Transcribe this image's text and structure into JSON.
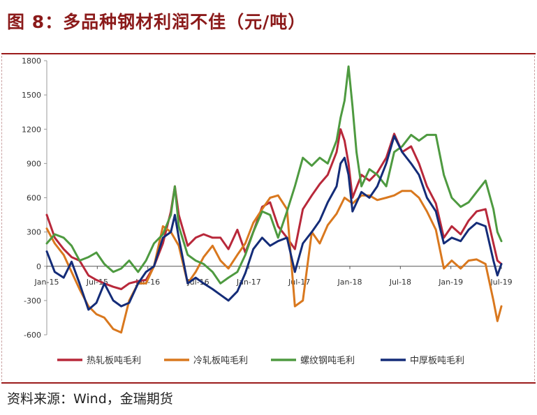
{
  "title": "图 8：多品种钢材利润不佳（元/吨）",
  "source": "资料来源：Wind，金瑞期货",
  "chart_data": {
    "type": "line",
    "title": "多品种钢材利润不佳（元/吨）",
    "ylim": [
      -600,
      1800
    ],
    "yticks": [
      "1800",
      "1500",
      "1200",
      "900",
      "600",
      "300",
      "0",
      "-300",
      "-600"
    ],
    "xticks": [
      "Jan-15",
      "Jul-15",
      "Jan-16",
      "Jul-16",
      "Jan-17",
      "Jul-17",
      "Jan-18",
      "Jul-18",
      "Jan-19",
      "Jul-19"
    ],
    "x_start": 2015.0,
    "x_end": 2019.58,
    "series": [
      {
        "name": "热轧板吨毛利",
        "color": "#b8283a",
        "points": [
          [
            2015.0,
            450
          ],
          [
            2015.08,
            250
          ],
          [
            2015.17,
            150
          ],
          [
            2015.25,
            80
          ],
          [
            2015.33,
            50
          ],
          [
            2015.42,
            -80
          ],
          [
            2015.5,
            -120
          ],
          [
            2015.58,
            -150
          ],
          [
            2015.67,
            -180
          ],
          [
            2015.75,
            -200
          ],
          [
            2015.83,
            -150
          ],
          [
            2015.92,
            -130
          ],
          [
            2016.0,
            -120
          ],
          [
            2016.08,
            0
          ],
          [
            2016.17,
            200
          ],
          [
            2016.25,
            480
          ],
          [
            2016.29,
            700
          ],
          [
            2016.33,
            450
          ],
          [
            2016.42,
            180
          ],
          [
            2016.5,
            250
          ],
          [
            2016.58,
            280
          ],
          [
            2016.67,
            250
          ],
          [
            2016.75,
            250
          ],
          [
            2016.83,
            150
          ],
          [
            2016.92,
            320
          ],
          [
            2017.0,
            120
          ],
          [
            2017.08,
            300
          ],
          [
            2017.17,
            520
          ],
          [
            2017.25,
            560
          ],
          [
            2017.33,
            350
          ],
          [
            2017.42,
            250
          ],
          [
            2017.5,
            150
          ],
          [
            2017.58,
            500
          ],
          [
            2017.67,
            620
          ],
          [
            2017.75,
            720
          ],
          [
            2017.83,
            800
          ],
          [
            2017.92,
            1000
          ],
          [
            2017.96,
            1200
          ],
          [
            2018.0,
            1100
          ],
          [
            2018.04,
            900
          ],
          [
            2018.08,
            600
          ],
          [
            2018.17,
            800
          ],
          [
            2018.25,
            750
          ],
          [
            2018.33,
            820
          ],
          [
            2018.42,
            950
          ],
          [
            2018.5,
            1160
          ],
          [
            2018.58,
            1000
          ],
          [
            2018.67,
            1050
          ],
          [
            2018.75,
            900
          ],
          [
            2018.83,
            700
          ],
          [
            2018.92,
            550
          ],
          [
            2019.0,
            250
          ],
          [
            2019.08,
            350
          ],
          [
            2019.17,
            280
          ],
          [
            2019.25,
            400
          ],
          [
            2019.33,
            480
          ],
          [
            2019.42,
            500
          ],
          [
            2019.5,
            200
          ],
          [
            2019.54,
            50
          ],
          [
            2019.58,
            20
          ]
        ]
      },
      {
        "name": "冷轧板吨毛利",
        "color": "#d9781e",
        "points": [
          [
            2015.0,
            330
          ],
          [
            2015.08,
            200
          ],
          [
            2015.17,
            100
          ],
          [
            2015.25,
            -50
          ],
          [
            2015.33,
            -200
          ],
          [
            2015.42,
            -350
          ],
          [
            2015.5,
            -420
          ],
          [
            2015.58,
            -450
          ],
          [
            2015.67,
            -550
          ],
          [
            2015.75,
            -580
          ],
          [
            2015.83,
            -300
          ],
          [
            2015.92,
            -150
          ],
          [
            2016.0,
            -150
          ],
          [
            2016.08,
            0
          ],
          [
            2016.17,
            350
          ],
          [
            2016.25,
            300
          ],
          [
            2016.33,
            180
          ],
          [
            2016.42,
            -150
          ],
          [
            2016.5,
            -50
          ],
          [
            2016.58,
            80
          ],
          [
            2016.67,
            180
          ],
          [
            2016.75,
            50
          ],
          [
            2016.83,
            -20
          ],
          [
            2016.92,
            100
          ],
          [
            2017.0,
            200
          ],
          [
            2017.08,
            380
          ],
          [
            2017.17,
            500
          ],
          [
            2017.25,
            600
          ],
          [
            2017.33,
            620
          ],
          [
            2017.42,
            500
          ],
          [
            2017.5,
            -350
          ],
          [
            2017.58,
            -300
          ],
          [
            2017.67,
            300
          ],
          [
            2017.75,
            200
          ],
          [
            2017.83,
            360
          ],
          [
            2017.92,
            460
          ],
          [
            2018.0,
            600
          ],
          [
            2018.08,
            550
          ],
          [
            2018.17,
            620
          ],
          [
            2018.25,
            620
          ],
          [
            2018.33,
            580
          ],
          [
            2018.42,
            600
          ],
          [
            2018.5,
            620
          ],
          [
            2018.58,
            660
          ],
          [
            2018.67,
            660
          ],
          [
            2018.75,
            600
          ],
          [
            2018.83,
            480
          ],
          [
            2018.92,
            320
          ],
          [
            2019.0,
            -20
          ],
          [
            2019.08,
            50
          ],
          [
            2019.17,
            -20
          ],
          [
            2019.25,
            50
          ],
          [
            2019.33,
            60
          ],
          [
            2019.42,
            20
          ],
          [
            2019.5,
            -300
          ],
          [
            2019.54,
            -480
          ],
          [
            2019.58,
            -350
          ]
        ]
      },
      {
        "name": "螺纹钢吨毛利",
        "color": "#4e9a40",
        "points": [
          [
            2015.0,
            200
          ],
          [
            2015.08,
            280
          ],
          [
            2015.17,
            250
          ],
          [
            2015.25,
            180
          ],
          [
            2015.33,
            50
          ],
          [
            2015.42,
            80
          ],
          [
            2015.5,
            120
          ],
          [
            2015.58,
            20
          ],
          [
            2015.67,
            -50
          ],
          [
            2015.75,
            -20
          ],
          [
            2015.83,
            50
          ],
          [
            2015.92,
            -50
          ],
          [
            2016.0,
            50
          ],
          [
            2016.08,
            200
          ],
          [
            2016.17,
            280
          ],
          [
            2016.25,
            450
          ],
          [
            2016.29,
            700
          ],
          [
            2016.33,
            350
          ],
          [
            2016.42,
            100
          ],
          [
            2016.5,
            50
          ],
          [
            2016.58,
            20
          ],
          [
            2016.67,
            -50
          ],
          [
            2016.75,
            -150
          ],
          [
            2016.83,
            -100
          ],
          [
            2016.92,
            -50
          ],
          [
            2017.0,
            100
          ],
          [
            2017.08,
            300
          ],
          [
            2017.17,
            480
          ],
          [
            2017.25,
            450
          ],
          [
            2017.33,
            250
          ],
          [
            2017.42,
            480
          ],
          [
            2017.5,
            700
          ],
          [
            2017.58,
            950
          ],
          [
            2017.67,
            880
          ],
          [
            2017.75,
            950
          ],
          [
            2017.83,
            900
          ],
          [
            2017.92,
            1100
          ],
          [
            2017.96,
            1300
          ],
          [
            2018.0,
            1450
          ],
          [
            2018.04,
            1750
          ],
          [
            2018.08,
            1400
          ],
          [
            2018.12,
            1000
          ],
          [
            2018.17,
            700
          ],
          [
            2018.25,
            850
          ],
          [
            2018.33,
            800
          ],
          [
            2018.42,
            700
          ],
          [
            2018.5,
            1000
          ],
          [
            2018.58,
            1050
          ],
          [
            2018.67,
            1150
          ],
          [
            2018.75,
            1100
          ],
          [
            2018.83,
            1150
          ],
          [
            2018.92,
            1150
          ],
          [
            2019.0,
            800
          ],
          [
            2019.08,
            600
          ],
          [
            2019.17,
            520
          ],
          [
            2019.25,
            560
          ],
          [
            2019.33,
            650
          ],
          [
            2019.42,
            750
          ],
          [
            2019.5,
            500
          ],
          [
            2019.54,
            300
          ],
          [
            2019.58,
            220
          ]
        ]
      },
      {
        "name": "中厚板吨毛利",
        "color": "#142c78",
        "points": [
          [
            2015.0,
            130
          ],
          [
            2015.08,
            -50
          ],
          [
            2015.17,
            -100
          ],
          [
            2015.25,
            40
          ],
          [
            2015.33,
            -150
          ],
          [
            2015.42,
            -380
          ],
          [
            2015.5,
            -320
          ],
          [
            2015.58,
            -150
          ],
          [
            2015.67,
            -300
          ],
          [
            2015.75,
            -350
          ],
          [
            2015.83,
            -320
          ],
          [
            2015.92,
            -150
          ],
          [
            2016.0,
            -50
          ],
          [
            2016.08,
            0
          ],
          [
            2016.17,
            250
          ],
          [
            2016.25,
            300
          ],
          [
            2016.29,
            450
          ],
          [
            2016.33,
            250
          ],
          [
            2016.42,
            -150
          ],
          [
            2016.5,
            -100
          ],
          [
            2016.58,
            -150
          ],
          [
            2016.67,
            -200
          ],
          [
            2016.75,
            -250
          ],
          [
            2016.83,
            -300
          ],
          [
            2016.92,
            -220
          ],
          [
            2017.0,
            -60
          ],
          [
            2017.08,
            150
          ],
          [
            2017.17,
            250
          ],
          [
            2017.25,
            180
          ],
          [
            2017.33,
            220
          ],
          [
            2017.42,
            250
          ],
          [
            2017.5,
            -50
          ],
          [
            2017.58,
            200
          ],
          [
            2017.67,
            300
          ],
          [
            2017.75,
            400
          ],
          [
            2017.83,
            560
          ],
          [
            2017.92,
            700
          ],
          [
            2017.96,
            900
          ],
          [
            2018.0,
            950
          ],
          [
            2018.04,
            800
          ],
          [
            2018.08,
            480
          ],
          [
            2018.17,
            650
          ],
          [
            2018.25,
            600
          ],
          [
            2018.33,
            700
          ],
          [
            2018.42,
            900
          ],
          [
            2018.5,
            1140
          ],
          [
            2018.58,
            1000
          ],
          [
            2018.67,
            900
          ],
          [
            2018.75,
            800
          ],
          [
            2018.83,
            600
          ],
          [
            2018.92,
            480
          ],
          [
            2019.0,
            200
          ],
          [
            2019.08,
            250
          ],
          [
            2019.17,
            220
          ],
          [
            2019.25,
            320
          ],
          [
            2019.33,
            380
          ],
          [
            2019.42,
            350
          ],
          [
            2019.5,
            50
          ],
          [
            2019.54,
            -80
          ],
          [
            2019.58,
            20
          ]
        ]
      }
    ]
  }
}
